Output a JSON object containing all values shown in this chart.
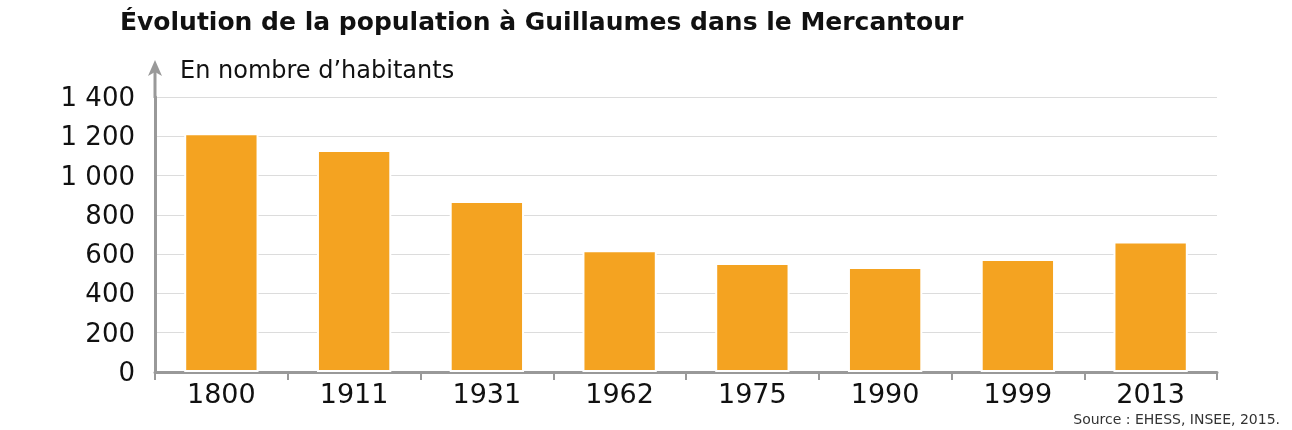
{
  "chart_data": {
    "type": "bar",
    "title": "Évolution de la population à Guillaumes dans le Mercantour",
    "ylabel": "En nombre d’habitants",
    "categories": [
      "1800",
      "1911",
      "1931",
      "1962",
      "1975",
      "1990",
      "1999",
      "2013"
    ],
    "values": [
      1215,
      1130,
      870,
      620,
      555,
      535,
      575,
      665
    ],
    "color": "#f4a321",
    "ylim": [
      0,
      1400
    ],
    "yticks": [
      0,
      200,
      400,
      600,
      800,
      {
        "value": 1000,
        "label": "1 000"
      },
      {
        "value": 1200,
        "label": "1 200"
      },
      {
        "value": 1400,
        "label": "1 400"
      }
    ],
    "grid": "y",
    "annotations": [
      "Source : EHESS, INSEE, 2015."
    ]
  }
}
